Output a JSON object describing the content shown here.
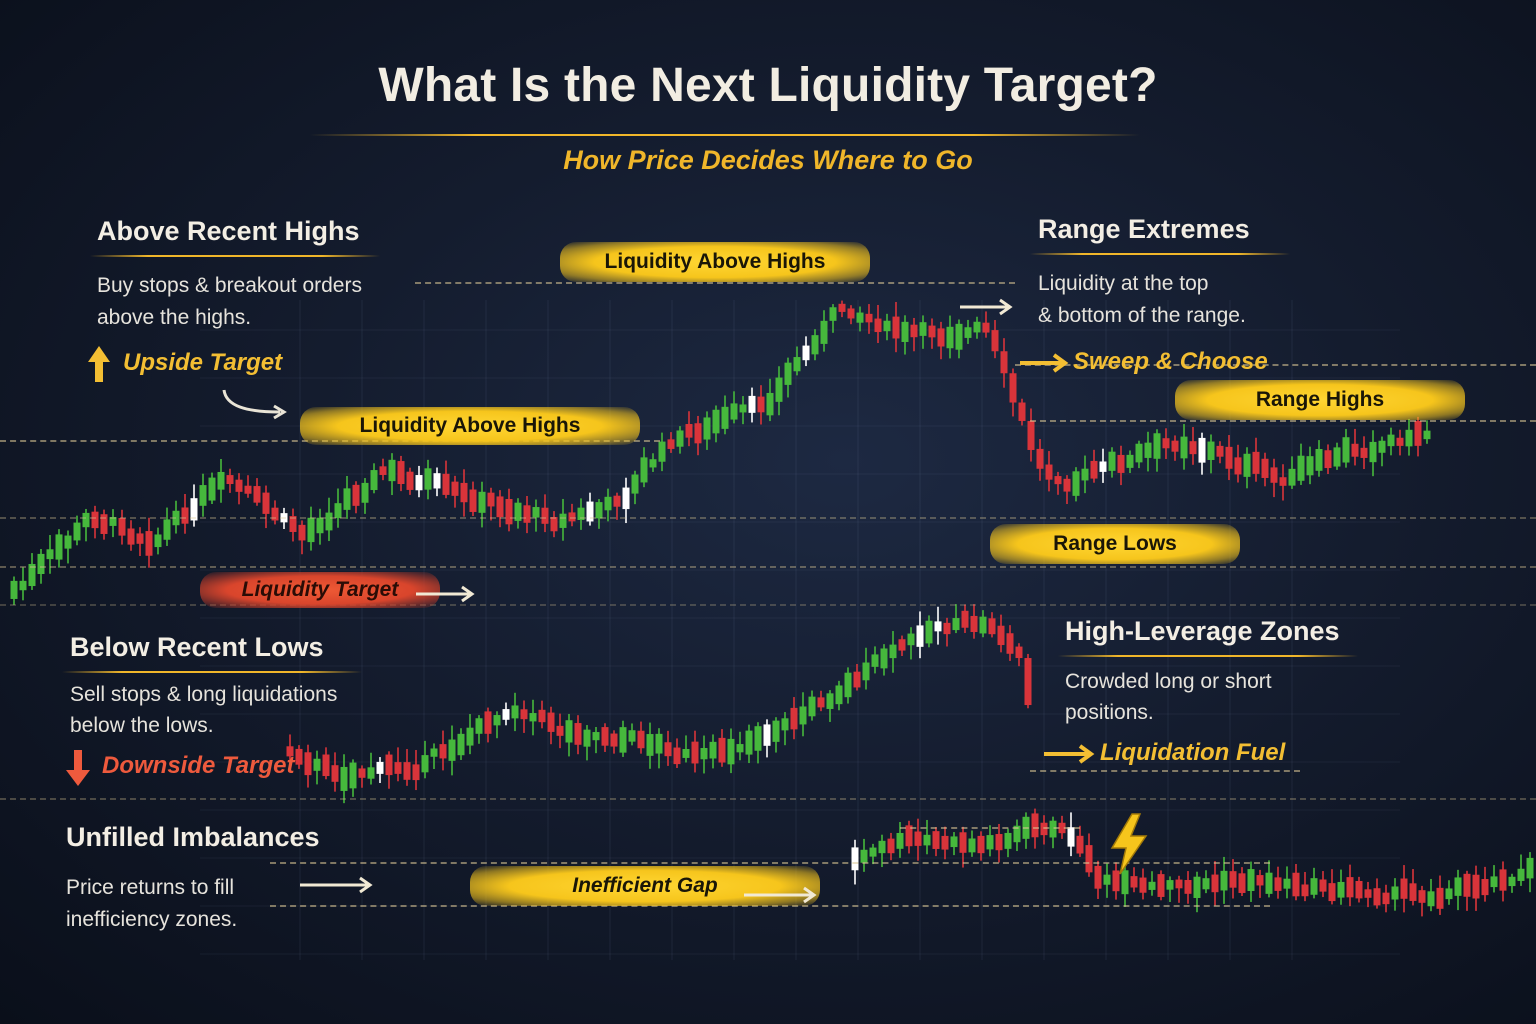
{
  "title": "What Is the Next Liquidity Target?",
  "subtitle": "How Price Decides Where to Go",
  "sections": {
    "above_highs": {
      "heading": "Above Recent Highs",
      "desc_line1": "Buy stops & breakout orders",
      "desc_line2": "above the highs.",
      "target": "Upside Target"
    },
    "below_lows": {
      "heading": "Below Recent Lows",
      "desc_line1": "Sell stops & long liquidations",
      "desc_line2": "below the lows.",
      "target": "Downside Target"
    },
    "range": {
      "heading": "Range Extremes",
      "desc_line1": "Liquidity at the top",
      "desc_line2": "& bottom of the range.",
      "target": "Sweep & Choose"
    },
    "leverage": {
      "heading": "High-Leverage Zones",
      "desc_line1": "Crowded long or short",
      "desc_line2": "positions.",
      "target": "Liquidation Fuel"
    },
    "imbalance": {
      "heading": "Unfilled Imbalances",
      "desc_line1": "Price returns to fill",
      "desc_line2": "inefficiency zones."
    }
  },
  "bands": {
    "liquidity_above_highs_top": "Liquidity Above Highs",
    "liquidity_above_highs_left": "Liquidity Above Highs",
    "liquidity_target": "Liquidity Target",
    "range_highs": "Range Highs",
    "range_lows": "Range Lows",
    "inefficient_gap": "Inefficient Gap"
  },
  "icons": {
    "up_arrow": "arrow-up-icon",
    "down_arrow": "arrow-down-icon",
    "right_arrow": "arrow-right-icon",
    "lightning": "lightning-icon"
  },
  "colors": {
    "background": "#141c2e",
    "bullish": "#46b83c",
    "bearish": "#d9343a",
    "accent_yellow": "#f6c51c",
    "accent_red": "#e24a30",
    "neutral_candle": "#ffffff"
  }
}
